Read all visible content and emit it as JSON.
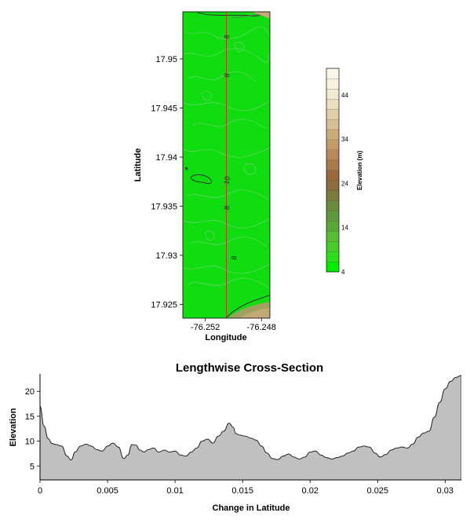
{
  "chart_data": [
    {
      "type": "heatmap",
      "title": "",
      "xlabel": "Longitude",
      "ylabel": "Latitude",
      "x_ticks": [
        -76.252,
        -76.248
      ],
      "x_tick_labels": [
        "-76.252",
        "-76.248"
      ],
      "xlim": [
        -76.2536,
        -76.2474
      ],
      "y_ticks": [
        17.95,
        17.945,
        17.94,
        17.935,
        17.93,
        17.925
      ],
      "y_tick_labels": [
        "17.95",
        "17.945",
        "17.94",
        "17.935",
        "17.93",
        "17.925"
      ],
      "ylim": [
        17.9236,
        17.9548
      ],
      "contour_labels": [
        {
          "text": "8",
          "lon": -76.2503,
          "lat": 17.9522
        },
        {
          "text": "8",
          "lon": -76.2503,
          "lat": 17.9483
        },
        {
          "text": "10",
          "lon": -76.2503,
          "lat": 17.9376
        },
        {
          "text": "8",
          "lon": -76.2503,
          "lat": 17.9348
        },
        {
          "text": "8",
          "lon": -76.2498,
          "lat": 17.9297
        }
      ],
      "transect_longitude": -76.2505,
      "colorbar": {
        "label": "Elevation (m)",
        "tick_labels": [
          "4",
          "14",
          "24",
          "34",
          "44"
        ],
        "ticks": [
          4,
          14,
          24,
          34,
          44
        ],
        "range": [
          4,
          50
        ],
        "colors": [
          "#00ee00",
          "#2edd1c",
          "#46cc2c",
          "#5bbb33",
          "#5aa83a",
          "#5e9a3e",
          "#6a8b3d",
          "#7a7c3c",
          "#8b6c3c",
          "#9a6a3e",
          "#a97b4c",
          "#b88a5a",
          "#c49c68",
          "#cdac7a",
          "#d8be92",
          "#e3d0aa",
          "#ecdfc0",
          "#f3ead2",
          "#f8f2e0",
          "#fbf7e8"
        ]
      }
    },
    {
      "type": "area",
      "title": "Lengthwise Cross-Section",
      "xlabel": "Change in Latitude",
      "ylabel": "Elevation",
      "x_ticks": [
        0,
        0.005,
        0.01,
        0.015,
        0.02,
        0.025,
        0.03
      ],
      "x_tick_labels": [
        "0",
        "0.005",
        "0.01",
        "0.015",
        "0.02",
        "0.025",
        "0.03"
      ],
      "y_ticks": [
        5,
        10,
        15,
        20
      ],
      "y_tick_labels": [
        "5",
        "10",
        "15",
        "20"
      ],
      "xlim": [
        0,
        0.0312
      ],
      "ylim": [
        2.2,
        23.5
      ],
      "fill_color": "#c0c0c0",
      "x": [
        0,
        0.0003,
        0.0006,
        0.0009,
        0.0012,
        0.0016,
        0.002,
        0.0023,
        0.0026,
        0.003,
        0.0034,
        0.0038,
        0.0042,
        0.0046,
        0.005,
        0.0054,
        0.0058,
        0.0062,
        0.0065,
        0.0068,
        0.0071,
        0.0074,
        0.0077,
        0.008,
        0.0084,
        0.0088,
        0.0092,
        0.0096,
        0.01,
        0.0104,
        0.0108,
        0.0112,
        0.0116,
        0.012,
        0.0124,
        0.0128,
        0.0132,
        0.0136,
        0.014,
        0.0143,
        0.0145,
        0.0148,
        0.0152,
        0.0156,
        0.016,
        0.0164,
        0.0168,
        0.0172,
        0.0176,
        0.018,
        0.0184,
        0.0188,
        0.0192,
        0.0196,
        0.02,
        0.0204,
        0.0208,
        0.0212,
        0.0216,
        0.022,
        0.0224,
        0.0228,
        0.0232,
        0.0236,
        0.024,
        0.0244,
        0.0248,
        0.0252,
        0.0256,
        0.026,
        0.0264,
        0.0268,
        0.0272,
        0.0276,
        0.028,
        0.0284,
        0.0288,
        0.0292,
        0.0296,
        0.03,
        0.0304,
        0.0308,
        0.0312
      ],
      "values": [
        17,
        13,
        10.5,
        9.5,
        9.3,
        9,
        7,
        6.2,
        7.8,
        9,
        9.4,
        9,
        8.3,
        8,
        9,
        9.6,
        8.8,
        6.5,
        7.2,
        9.3,
        9.2,
        8.2,
        7.8,
        8.3,
        8.6,
        7.8,
        8.2,
        7.8,
        8,
        7.2,
        7,
        7.8,
        8.6,
        10,
        10.4,
        9.6,
        11,
        12,
        13.6,
        12.8,
        11.5,
        11.2,
        11,
        10.6,
        10.2,
        9,
        7.6,
        6.5,
        6.3,
        7,
        7.4,
        6.8,
        6.4,
        6.8,
        7.8,
        8,
        7.2,
        6.7,
        6.4,
        6.7,
        7,
        7.6,
        8,
        8.8,
        9,
        8.8,
        7.6,
        6.8,
        7.3,
        8.2,
        8.6,
        8.8,
        8.6,
        9.4,
        10.8,
        11.6,
        12,
        14.8,
        17.8,
        20.5,
        22,
        22.8,
        23.2
      ]
    }
  ]
}
